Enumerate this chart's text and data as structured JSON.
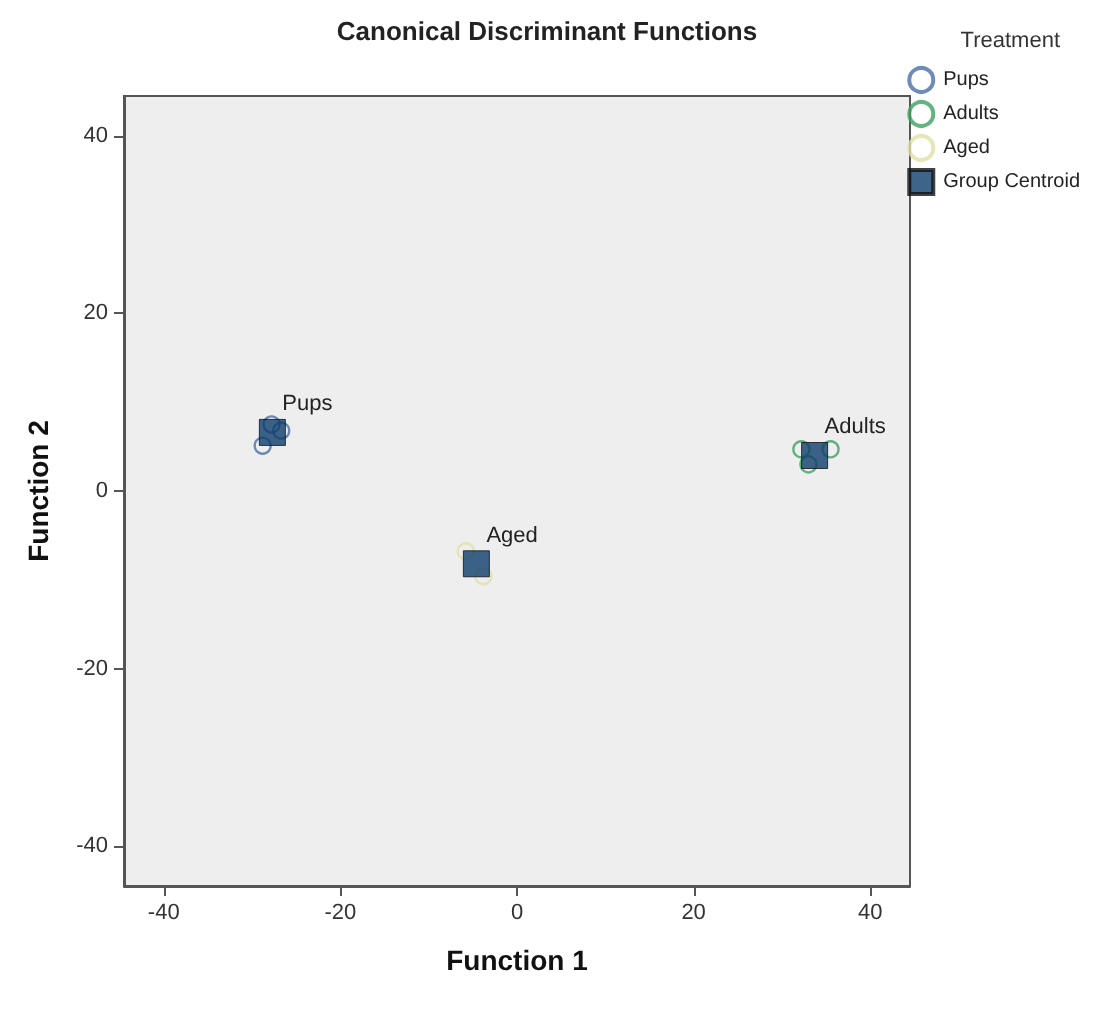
{
  "chart_data": {
    "type": "scatter",
    "title": "Canonical Discriminant Functions",
    "xlabel": "Function 1",
    "ylabel": "Function 2",
    "legend_title": "Treatment",
    "legend": "top right",
    "grid": false,
    "xlim": [
      -44.5,
      44.5
    ],
    "ylim": [
      -44.5,
      44.5
    ],
    "xticks": [
      -40,
      -20,
      0,
      20,
      40
    ],
    "yticks": [
      -40,
      -20,
      0,
      20,
      40
    ],
    "series": [
      {
        "name": "Pups",
        "color": "#4a6fa5",
        "marker": "circle",
        "x": [
          -28.8,
          -27.8,
          -26.7
        ],
        "values": [
          5.1,
          7.5,
          6.8
        ]
      },
      {
        "name": "Adults",
        "color": "#3fa060",
        "marker": "circle",
        "x": [
          32.2,
          35.5,
          33.0
        ],
        "values": [
          4.7,
          4.7,
          3.0
        ]
      },
      {
        "name": "Aged",
        "color": "#e0e0a8",
        "marker": "circle",
        "x": [
          -5.8,
          -3.8
        ],
        "values": [
          -6.8,
          -9.6
        ]
      },
      {
        "name": "Group Centroid",
        "color": "#0f3d6b",
        "marker": "square",
        "x": [
          -27.7,
          33.7,
          -4.6
        ],
        "values": [
          6.6,
          4.0,
          -8.2
        ]
      }
    ],
    "annotations": [
      {
        "text": "Pups",
        "x": -27.7,
        "y": 6.6
      },
      {
        "text": "Adults",
        "x": 33.7,
        "y": 4.0
      },
      {
        "text": "Aged",
        "x": -4.6,
        "y": -8.2
      }
    ]
  }
}
